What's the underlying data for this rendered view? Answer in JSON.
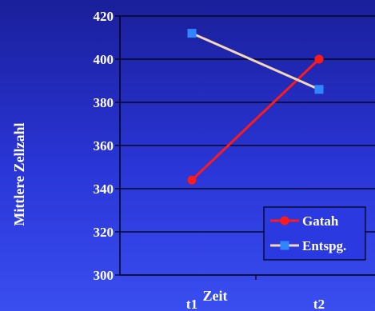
{
  "chart_data": {
    "type": "line",
    "categories": [
      "t1",
      "t2"
    ],
    "xlabel": "Zeit",
    "ylabel": "Mittlere Zellzahl",
    "ylim": [
      300,
      420
    ],
    "yticks": [
      300,
      320,
      340,
      360,
      380,
      400,
      420
    ],
    "grid": true,
    "legend_position": "bottom-right",
    "series": [
      {
        "name": "Gatah",
        "values": [
          344,
          400
        ],
        "color": "#ff1a1a",
        "line_color": "#ff1a1a",
        "marker": "circle"
      },
      {
        "name": "Entspg.",
        "values": [
          412,
          386
        ],
        "color": "#2f86ff",
        "line_color": "#f5d7b5",
        "marker": "square"
      }
    ]
  }
}
